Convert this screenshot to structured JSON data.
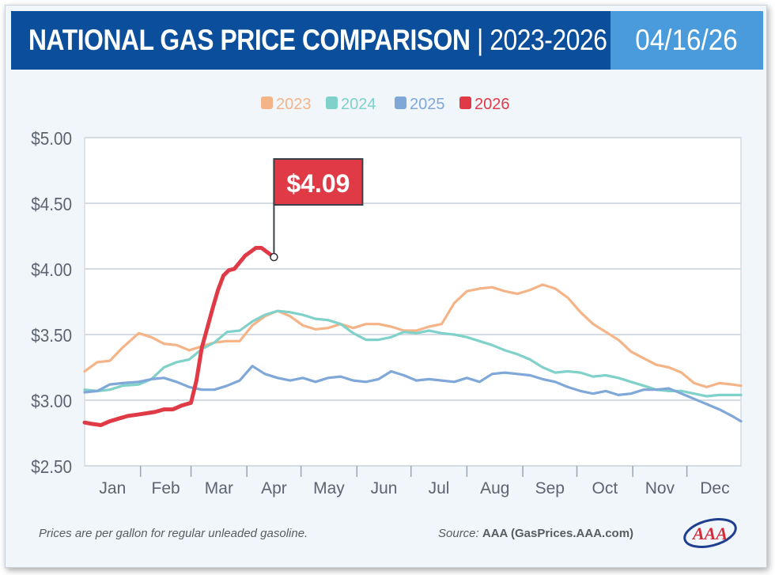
{
  "header": {
    "title_bold": "NATIONAL GAS PRICE COMPARISON",
    "title_sep": " | ",
    "title_years": "2023-2026",
    "date": "04/16/26"
  },
  "footer": {
    "note": "Prices are per gallon for regular unleaded gasoline.",
    "source_label": "Source: ",
    "source_value": "AAA (GasPrices.AAA.com)",
    "logo_text": "AAA"
  },
  "colors": {
    "header_bg": "#0b4f9c",
    "date_bg": "#4a9bdc",
    "y2023": "#f5b487",
    "y2024": "#7fd1c9",
    "y2025": "#7fa8d8",
    "y2026": "#e03a47",
    "callout_bg": "#e03a47",
    "grid": "#d4dbe3"
  },
  "chart_data": {
    "type": "line",
    "title": "",
    "xlabel": "",
    "ylabel": "",
    "x_unit": "day of year",
    "ylim": [
      2.5,
      5.0
    ],
    "y_ticks": [
      "$5.00",
      "$4.50",
      "$4.00",
      "$3.50",
      "$3.00",
      "$2.50"
    ],
    "y_tick_values": [
      5.0,
      4.5,
      4.0,
      3.5,
      3.0,
      2.5
    ],
    "categories": [
      "Jan",
      "Feb",
      "Mar",
      "Apr",
      "May",
      "Jun",
      "Jul",
      "Aug",
      "Sep",
      "Oct",
      "Nov",
      "Dec"
    ],
    "grid": "horizontal",
    "legend_position": "top-center",
    "callout": {
      "label": "$4.09",
      "value": 4.09,
      "day": 106
    },
    "series": [
      {
        "name": "2023",
        "color": "#f5b487",
        "x": [
          1,
          8,
          15,
          22,
          31,
          38,
          45,
          52,
          59,
          66,
          73,
          80,
          87,
          94,
          101,
          108,
          115,
          122,
          129,
          136,
          143,
          150,
          157,
          164,
          171,
          178,
          185,
          192,
          199,
          206,
          213,
          220,
          227,
          234,
          241,
          248,
          255,
          262,
          269,
          276,
          283,
          290,
          297,
          304,
          311,
          318,
          325,
          332,
          339,
          346,
          353,
          360,
          365
        ],
        "y": [
          3.22,
          3.29,
          3.3,
          3.4,
          3.51,
          3.48,
          3.43,
          3.42,
          3.38,
          3.41,
          3.44,
          3.45,
          3.45,
          3.57,
          3.64,
          3.68,
          3.64,
          3.57,
          3.54,
          3.55,
          3.58,
          3.55,
          3.58,
          3.58,
          3.56,
          3.53,
          3.53,
          3.56,
          3.58,
          3.74,
          3.83,
          3.85,
          3.86,
          3.83,
          3.81,
          3.84,
          3.88,
          3.85,
          3.78,
          3.67,
          3.58,
          3.52,
          3.46,
          3.37,
          3.32,
          3.27,
          3.25,
          3.21,
          3.13,
          3.1,
          3.13,
          3.12,
          3.11
        ]
      },
      {
        "name": "2024",
        "color": "#7fd1c9",
        "x": [
          1,
          8,
          15,
          22,
          31,
          38,
          45,
          52,
          59,
          66,
          73,
          80,
          87,
          94,
          101,
          108,
          115,
          122,
          129,
          136,
          143,
          150,
          157,
          164,
          171,
          178,
          185,
          192,
          199,
          206,
          213,
          220,
          227,
          234,
          241,
          248,
          255,
          262,
          269,
          276,
          283,
          290,
          297,
          304,
          311,
          318,
          325,
          332,
          339,
          346,
          353,
          360,
          365
        ],
        "y": [
          3.08,
          3.07,
          3.08,
          3.11,
          3.12,
          3.16,
          3.25,
          3.29,
          3.31,
          3.39,
          3.44,
          3.52,
          3.53,
          3.6,
          3.65,
          3.68,
          3.67,
          3.65,
          3.62,
          3.61,
          3.58,
          3.51,
          3.46,
          3.46,
          3.48,
          3.52,
          3.51,
          3.53,
          3.51,
          3.5,
          3.48,
          3.45,
          3.42,
          3.38,
          3.35,
          3.31,
          3.25,
          3.21,
          3.22,
          3.21,
          3.18,
          3.19,
          3.17,
          3.14,
          3.11,
          3.08,
          3.07,
          3.07,
          3.05,
          3.03,
          3.04,
          3.04,
          3.04
        ]
      },
      {
        "name": "2025",
        "color": "#7fa8d8",
        "x": [
          1,
          8,
          15,
          22,
          31,
          38,
          45,
          52,
          59,
          66,
          73,
          80,
          87,
          94,
          101,
          108,
          115,
          122,
          129,
          136,
          143,
          150,
          157,
          164,
          171,
          178,
          185,
          192,
          199,
          206,
          213,
          220,
          227,
          234,
          241,
          248,
          255,
          262,
          269,
          276,
          283,
          290,
          297,
          304,
          311,
          318,
          325,
          332,
          339,
          346,
          353,
          360,
          365
        ],
        "y": [
          3.06,
          3.07,
          3.12,
          3.13,
          3.14,
          3.16,
          3.17,
          3.14,
          3.1,
          3.08,
          3.08,
          3.11,
          3.15,
          3.26,
          3.2,
          3.17,
          3.15,
          3.17,
          3.14,
          3.17,
          3.18,
          3.15,
          3.14,
          3.16,
          3.22,
          3.19,
          3.15,
          3.16,
          3.15,
          3.14,
          3.17,
          3.14,
          3.2,
          3.21,
          3.2,
          3.19,
          3.16,
          3.14,
          3.1,
          3.07,
          3.05,
          3.07,
          3.04,
          3.05,
          3.08,
          3.08,
          3.09,
          3.05,
          3.01,
          2.97,
          2.93,
          2.88,
          2.84
        ]
      },
      {
        "name": "2026",
        "color": "#e03a47",
        "x": [
          1,
          5,
          10,
          15,
          20,
          25,
          30,
          35,
          40,
          45,
          50,
          55,
          60,
          63,
          66,
          69,
          72,
          75,
          78,
          81,
          84,
          87,
          90,
          93,
          96,
          99,
          102,
          106
        ],
        "y": [
          2.83,
          2.82,
          2.81,
          2.84,
          2.86,
          2.88,
          2.89,
          2.9,
          2.91,
          2.93,
          2.93,
          2.96,
          2.98,
          3.15,
          3.4,
          3.55,
          3.7,
          3.84,
          3.95,
          3.99,
          4.0,
          4.05,
          4.1,
          4.13,
          4.16,
          4.16,
          4.13,
          4.09
        ]
      }
    ]
  }
}
